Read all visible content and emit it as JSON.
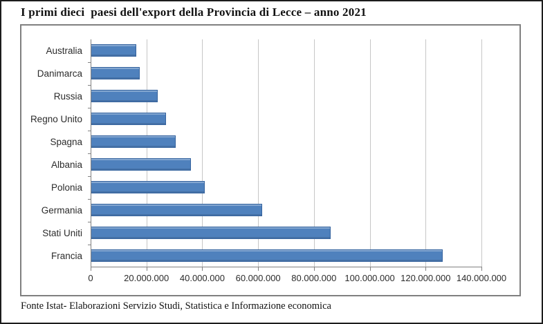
{
  "page": {
    "title": "I primi dieci  paesi dell'export della Provincia di Lecce – anno 2021",
    "source_note": "Fonte Istat- Elaborazioni Servizio Studi, Statistica e Informazione economica"
  },
  "chart_data": {
    "type": "bar",
    "orientation": "horizontal",
    "title": "I primi dieci  paesi dell'export della Provincia di Lecce – anno 2021",
    "categories": [
      "Australia",
      "Danimarca",
      "Russia",
      "Regno Unito",
      "Spagna",
      "Albania",
      "Polonia",
      "Germania",
      "Stati Uniti",
      "Francia"
    ],
    "values": [
      16300000,
      17500000,
      24000000,
      27000000,
      30500000,
      36000000,
      41000000,
      61500000,
      86000000,
      126000000
    ],
    "x_axis": {
      "min": 0,
      "max": 140000000,
      "tick_interval": 20000000,
      "tick_labels": [
        "0",
        "20.000.000",
        "40.000.000",
        "60.000.000",
        "80.000.000",
        "100.000.000",
        "120.000.000",
        "140.000.000"
      ]
    },
    "ylabel": "",
    "xlabel": "",
    "grid": true,
    "legend": false,
    "colors": {
      "bar_fill": "#4f81bd",
      "bar_border": "#35639e",
      "gridline": "#c6c6c6",
      "axis": "#808080",
      "chart_frame": "#7f7f7f"
    }
  }
}
